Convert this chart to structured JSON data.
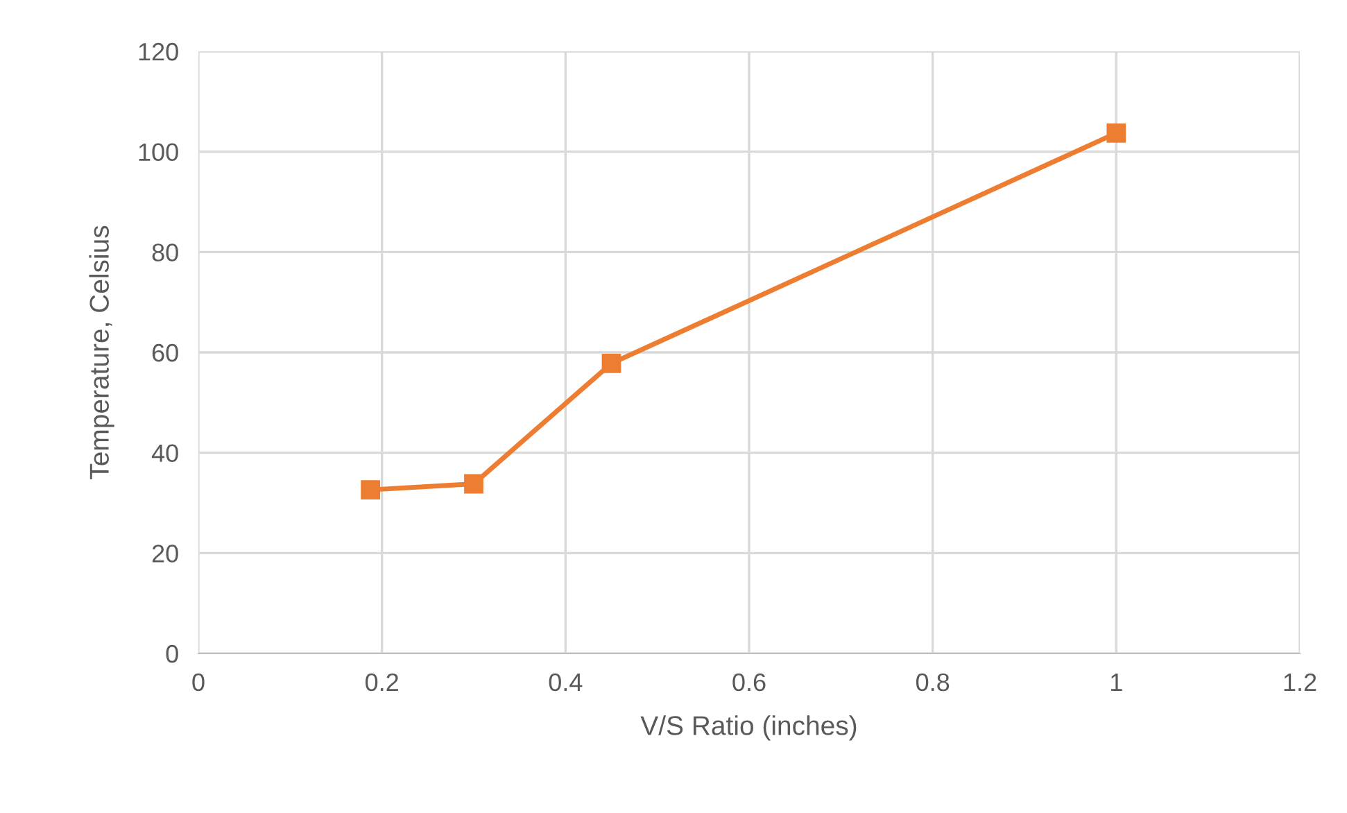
{
  "chart_data": {
    "type": "line",
    "xlabel": "V/S Ratio (inches)",
    "ylabel": "Temperature, Celsius",
    "x": [
      0.1875,
      0.3,
      0.45,
      1.0
    ],
    "series": [
      {
        "color": "#ed7d31",
        "values": [
          32.6,
          33.8,
          57.8,
          103.7
        ]
      }
    ],
    "xlim": [
      0,
      1.2
    ],
    "xticks": [
      0,
      0.2,
      0.4,
      0.6,
      0.8,
      1,
      1.2
    ],
    "ylim": [
      0,
      120
    ],
    "yticks": [
      0,
      20,
      40,
      60,
      80,
      100,
      120
    ],
    "grid": true,
    "marker": "square",
    "line_style": "solid",
    "legend": false
  }
}
